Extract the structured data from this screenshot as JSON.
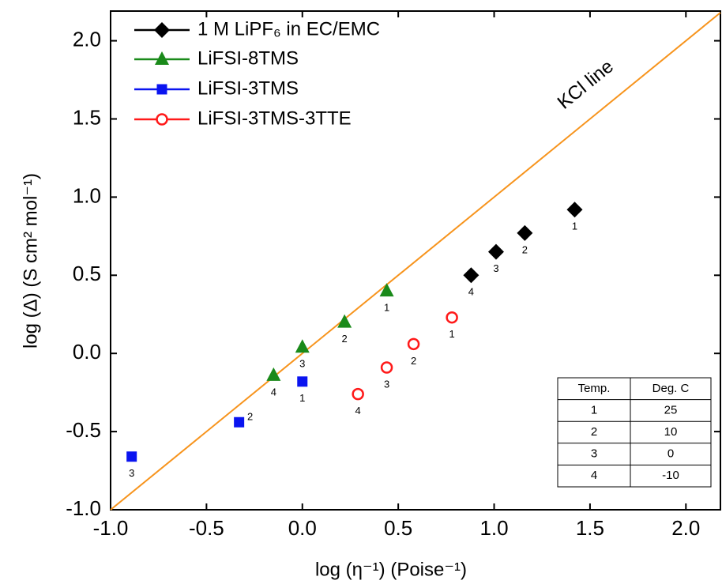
{
  "chart_data": {
    "type": "scatter",
    "xlabel": "log (η⁻¹)  (Poise⁻¹)",
    "ylabel": "log (Δ) (S cm² mol⁻¹)",
    "xlim": [
      -1.0,
      2.18
    ],
    "ylim": [
      -1.0,
      2.19
    ],
    "xticks": [
      {
        "value": -1.0,
        "label": "-1.0"
      },
      {
        "value": -0.5,
        "label": "-0.5"
      },
      {
        "value": 0.0,
        "label": "0.0"
      },
      {
        "value": 0.5,
        "label": "0.5"
      },
      {
        "value": 1.0,
        "label": "1.0"
      },
      {
        "value": 1.5,
        "label": "1.5"
      },
      {
        "value": 2.0,
        "label": "2.0"
      }
    ],
    "yticks": [
      {
        "value": -1.0,
        "label": "-1.0"
      },
      {
        "value": -0.5,
        "label": "-0.5"
      },
      {
        "value": 0.0,
        "label": "0.0"
      },
      {
        "value": 0.5,
        "label": "0.5"
      },
      {
        "value": 1.0,
        "label": "1.0"
      },
      {
        "value": 1.5,
        "label": "1.5"
      },
      {
        "value": 2.0,
        "label": "2.0"
      }
    ],
    "series": [
      {
        "name": "1 M LiPF₆ in EC/EMC",
        "color": "#000000",
        "marker": "diamond",
        "x": [
          1.42,
          1.16,
          1.01,
          0.88
        ],
        "values": [
          0.92,
          0.77,
          0.65,
          0.5
        ],
        "point_labels": [
          "1",
          "2",
          "3",
          "4"
        ]
      },
      {
        "name": "LiFSI-8TMS",
        "color": "#1a8a1a",
        "marker": "triangle",
        "x": [
          0.44,
          0.22,
          0.0,
          -0.15
        ],
        "values": [
          0.4,
          0.2,
          0.04,
          -0.14
        ],
        "point_labels": [
          "1",
          "2",
          "3",
          "4"
        ]
      },
      {
        "name": "LiFSI-3TMS",
        "color": "#0a14f0",
        "marker": "square",
        "x": [
          0.0,
          -0.33,
          -0.89
        ],
        "values": [
          -0.18,
          -0.44,
          -0.66
        ],
        "point_labels": [
          "1",
          "2",
          "3"
        ]
      },
      {
        "name": "LiFSI-3TMS-3TTE",
        "color": "#ff1a1a",
        "marker": "open-circle",
        "x": [
          0.78,
          0.58,
          0.44,
          0.29
        ],
        "values": [
          0.23,
          0.06,
          -0.09,
          -0.26
        ],
        "point_labels": [
          "1",
          "2",
          "3",
          "4"
        ]
      }
    ],
    "reference_line": {
      "label": "KCl line",
      "color": "#f7941d",
      "x": [
        -1.0,
        2.18
      ],
      "values": [
        -1.0,
        2.18
      ]
    },
    "table": {
      "header": [
        "Temp.",
        "Deg. C"
      ],
      "rows": [
        [
          1,
          25
        ],
        [
          2,
          10
        ],
        [
          3,
          0
        ],
        [
          4,
          -10
        ]
      ]
    }
  }
}
